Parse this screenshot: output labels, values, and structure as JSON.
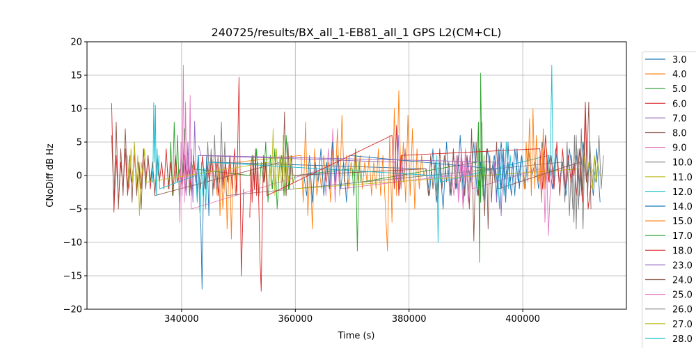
{
  "chart_data": {
    "type": "line",
    "title": "240725/results/BX_all_1-EB81_all_1 GPS L2(CM+CL)",
    "xlabel": "Time (s)",
    "ylabel": "CNoDiff dB Hz",
    "xlim": [
      323365,
      418226
    ],
    "ylim": [
      -20,
      20
    ],
    "xticks": [
      340000,
      360000,
      380000,
      400000
    ],
    "yticks": [
      -20,
      -15,
      -10,
      -5,
      0,
      5,
      10,
      15,
      20
    ],
    "grid": true,
    "legend_position": "outside-right",
    "series": [
      {
        "name": "3.0",
        "color": "#1f77b4",
        "segments": [
          {
            "t0": 342600,
            "dt": 200,
            "values": [
              0,
              -3,
              2,
              -5,
              -8,
              -17,
              -4,
              1,
              -2,
              3,
              0,
              -6,
              2
            ]
          },
          {
            "t0": 383000,
            "dt": 600,
            "values": [
              1,
              -3,
              4,
              -4,
              2,
              -5,
              5,
              -3,
              3,
              -2,
              6,
              -4,
              3,
              -1,
              5,
              -3,
              2,
              -4,
              4,
              0,
              3,
              -2,
              5,
              -1,
              2,
              -3,
              4,
              -1,
              3,
              -2,
              4,
              0,
              2,
              -2,
              5,
              -1,
              3,
              -2,
              4,
              -1,
              2,
              -3,
              4,
              0,
              3,
              -2,
              5,
              -1,
              2,
              -3,
              4,
              -4
            ]
          }
        ]
      },
      {
        "name": "4.0",
        "color": "#ff7f0e",
        "segments": [
          {
            "t0": 346000,
            "dt": 250,
            "values": [
              0,
              -3,
              2,
              -6,
              1,
              -5,
              -2,
              3,
              -8,
              -1,
              2,
              -9.5,
              0,
              1,
              -3,
              2
            ]
          },
          {
            "t0": 361000,
            "dt": 400,
            "values": [
              3,
              -4,
              8,
              -6,
              2,
              -8,
              4,
              -3,
              1,
              -2,
              3,
              -1,
              2,
              -4,
              5,
              -2,
              7,
              -3,
              9,
              -1,
              3,
              -2,
              2,
              0,
              4,
              -1,
              3,
              -2,
              2,
              -1,
              3,
              -3,
              2,
              -2,
              4,
              -3,
              3,
              -4,
              -11.3,
              6,
              -7,
              10,
              -3,
              12.7,
              -2,
              5,
              -4,
              9,
              -3,
              7,
              -5,
              4,
              -2,
              3,
              0,
              1
            ]
          }
        ]
      },
      {
        "name": "5.0",
        "color": "#2ca02c",
        "segments": [
          {
            "t0": 337500,
            "dt": 300,
            "values": [
              1,
              -2,
              5,
              -3,
              8,
              -1,
              6,
              -4,
              3,
              0,
              7,
              -2,
              4,
              -3,
              2,
              1
            ]
          },
          {
            "t0": 352000,
            "dt": 400,
            "values": [
              0,
              3,
              -2,
              4,
              -3,
              2,
              -1,
              5,
              -4,
              3,
              -2,
              4,
              -5,
              1,
              3,
              -3,
              6,
              -2,
              2,
              -1,
              0
            ]
          },
          {
            "t0": 370000,
            "dt": 300,
            "values": [
              1,
              -3,
              4,
              -11.3,
              2,
              -1
            ]
          },
          {
            "t0": 392000,
            "dt": 200,
            "values": [
              2,
              8,
              -13,
              15.3,
              1,
              -2,
              3
            ]
          }
        ]
      },
      {
        "name": "6.0",
        "color": "#d62728",
        "segments": [
          {
            "t0": 327700,
            "dt": 400,
            "values": [
              10.8,
              -5.5,
              3,
              -4,
              2,
              -2,
              4,
              -3,
              1,
              -1,
              3,
              -2,
              2,
              -2,
              4,
              -1,
              3,
              -2,
              2,
              -3,
              3,
              -1,
              2,
              -2,
              4,
              -2,
              2,
              -3,
              3,
              -1,
              1,
              -2,
              3,
              -1,
              2,
              -3,
              3,
              -1,
              2,
              -2,
              3,
              -2,
              2,
              -1,
              3,
              -2,
              2,
              -3,
              3,
              -2,
              2,
              -1,
              3,
              -2,
              4,
              -3,
              14.7,
              -15,
              -2
            ]
          }
        ]
      },
      {
        "name": "7.0",
        "color": "#9467bd",
        "segments": [
          {
            "t0": 340500,
            "dt": 300,
            "values": [
              0,
              -3,
              5,
              -2,
              4,
              -4,
              8.1,
              -1,
              3
            ]
          },
          {
            "t0": 377500,
            "dt": 300,
            "values": [
              2,
              -1,
              6,
              -2,
              3,
              -1,
              4,
              0
            ]
          }
        ]
      },
      {
        "name": "8.0",
        "color": "#8c564b",
        "segments": [
          {
            "t0": 327700,
            "dt": 400,
            "values": [
              6,
              -4,
              8,
              -5,
              4,
              -3,
              7,
              -2,
              3,
              -4,
              5,
              -3,
              2,
              -5,
              4,
              -2,
              3,
              -1,
              2,
              -3
            ]
          },
          {
            "t0": 357500,
            "dt": 300,
            "values": [
              2,
              -1,
              9.5,
              -3,
              5,
              -2,
              3,
              0
            ]
          },
          {
            "t0": 383000,
            "dt": 400,
            "values": [
              1,
              -3,
              3,
              -2,
              2,
              -4,
              4,
              -2,
              3,
              -1,
              2,
              -3,
              4,
              -2,
              3,
              -1,
              2,
              -3,
              3,
              -5,
              7,
              -9.8,
              5,
              -3,
              1
            ]
          }
        ]
      },
      {
        "name": "9.0",
        "color": "#e377c2",
        "segments": [
          {
            "t0": 339500,
            "dt": 200,
            "values": [
              0,
              -7,
              5,
              -3,
              16.5,
              -4,
              11,
              -2,
              3,
              -1,
              12,
              -5
            ]
          },
          {
            "t0": 365000,
            "dt": 400,
            "values": [
              1,
              -3,
              4,
              -2,
              7,
              -4,
              3,
              -2
            ]
          },
          {
            "t0": 387500,
            "dt": 400,
            "values": [
              0,
              -3,
              3,
              -4,
              2,
              -5,
              4,
              -1,
              3,
              -2
            ]
          },
          {
            "t0": 403000,
            "dt": 300,
            "values": [
              1,
              -4,
              3,
              -7,
              2,
              -9,
              -3,
              1,
              -2,
              0
            ]
          }
        ]
      },
      {
        "name": "10.0",
        "color": "#7f7f7f",
        "segments": [
          {
            "t0": 344000,
            "dt": 300,
            "values": [
              1,
              -2,
              5,
              -1,
              4,
              -3,
              6,
              -2,
              3,
              -1,
              8,
              -2,
              5,
              -3
            ]
          },
          {
            "t0": 407000,
            "dt": 400,
            "values": [
              2,
              -4,
              5,
              -6,
              3,
              -7,
              6,
              -5,
              4,
              -8,
              9,
              -3,
              5,
              -2,
              3,
              -1,
              6,
              -2,
              3
            ]
          }
        ]
      },
      {
        "name": "11.0",
        "color": "#bcbd22",
        "segments": [
          {
            "t0": 330500,
            "dt": 300,
            "values": [
              3,
              -2,
              4,
              -1,
              5,
              -2,
              3,
              -6,
              2,
              0,
              4,
              -1
            ]
          },
          {
            "t0": 355500,
            "dt": 300,
            "values": [
              2,
              -2,
              7,
              -3,
              4,
              -1,
              3,
              -2,
              6,
              -3,
              2,
              -1,
              3,
              0,
              -2
            ]
          },
          {
            "t0": 410000,
            "dt": 400,
            "values": [
              1,
              -2,
              3,
              -1,
              2,
              0,
              1,
              -1,
              2,
              0
            ]
          }
        ]
      },
      {
        "name": "12.0",
        "color": "#17becf",
        "segments": [
          {
            "t0": 334800,
            "dt": 150,
            "values": [
              1,
              -1,
              10.9,
              2,
              10.5,
              -3,
              4,
              0,
              3,
              -2
            ]
          },
          {
            "t0": 342500,
            "dt": 250,
            "values": [
              0,
              -4,
              3,
              -6,
              2,
              -3,
              1,
              -5,
              2
            ]
          },
          {
            "t0": 384500,
            "dt": 200,
            "values": [
              0,
              -3,
              3,
              -10,
              2,
              -1
            ]
          },
          {
            "t0": 404500,
            "dt": 200,
            "values": [
              3,
              -1,
              5,
              16.5,
              2,
              -1,
              3
            ]
          }
        ]
      },
      {
        "name": "14.0",
        "color": "#1f77b4",
        "segments": [
          {
            "t0": 361500,
            "dt": 500,
            "values": [
              0,
              -3,
              3,
              -4,
              2,
              -1,
              4,
              -3,
              2,
              -2,
              5,
              -1,
              3,
              -2,
              2,
              -4,
              3
            ]
          },
          {
            "t0": 395000,
            "dt": 400,
            "values": [
              1,
              -3,
              4,
              -2,
              3,
              -4,
              5,
              -1,
              2,
              -3,
              4,
              -2,
              3
            ]
          }
        ]
      },
      {
        "name": "15.0",
        "color": "#ff7f0e",
        "segments": [
          {
            "t0": 400000,
            "dt": 300,
            "values": [
              0,
              -2,
              5,
              -1,
              8.5,
              -3,
              10,
              -2,
              6,
              -1,
              3,
              -4,
              7,
              -2,
              4,
              0
            ]
          }
        ]
      },
      {
        "name": "17.0",
        "color": "#2ca02c",
        "segments": [
          {
            "t0": 392000,
            "dt": 200,
            "values": [
              1,
              -2,
              4,
              -4,
              8,
              -3,
              2,
              -1
            ]
          }
        ]
      },
      {
        "name": "18.0",
        "color": "#d62728",
        "segments": [
          {
            "t0": 352000,
            "dt": 200,
            "values": [
              -6.3,
              2,
              -4,
              3,
              -2,
              4,
              -3,
              2,
              -5,
              -12.6,
              -17.3,
              -6,
              3,
              -1,
              2,
              -3
            ]
          },
          {
            "t0": 377000,
            "dt": 400,
            "values": [
              6,
              -2,
              7.5,
              -3,
              3
            ]
          },
          {
            "t0": 403000,
            "dt": 500,
            "values": [
              4,
              -2,
              6,
              -1,
              3,
              -2,
              5,
              -3,
              4,
              -2,
              3,
              -1,
              2,
              -3,
              4,
              -4,
              11,
              -5,
              -1.5
            ]
          }
        ]
      },
      {
        "name": "23.0",
        "color": "#9467bd",
        "segments": [
          {
            "t0": 343000,
            "dt": 400,
            "values": [
              4.5,
              3
            ]
          },
          {
            "t0": 395000,
            "dt": 400,
            "values": [
              2,
              -4,
              3,
              -6,
              4,
              -3,
              2
            ]
          }
        ]
      },
      {
        "name": "24.0",
        "color": "#8c564b",
        "segments": [
          {
            "t0": 393000,
            "dt": 300,
            "values": [
              0,
              -6,
              4,
              -8,
              3,
              -4,
              2,
              -1,
              5,
              -2
            ]
          },
          {
            "t0": 410000,
            "dt": 400,
            "values": [
              2,
              -3,
              5,
              -1,
              11,
              -5
            ]
          }
        ]
      },
      {
        "name": "25.0",
        "color": "#e377c2",
        "segments": [
          {
            "t0": 388000,
            "dt": 400,
            "values": [
              -1,
              2,
              -3,
              4,
              -2,
              3,
              -4,
              2,
              -1
            ]
          }
        ]
      },
      {
        "name": "26.0",
        "color": "#7f7f7f",
        "segments": [
          {
            "t0": 408500,
            "dt": 300,
            "values": [
              1,
              -5,
              6,
              -8,
              4,
              -3,
              7,
              -2
            ]
          }
        ]
      },
      {
        "name": "27.0",
        "color": "#bcbd22",
        "segments": [
          {
            "t0": 412000,
            "dt": 300,
            "values": [
              1,
              -2,
              3,
              -1,
              2
            ]
          }
        ]
      },
      {
        "name": "28.0",
        "color": "#17becf",
        "segments": [
          {
            "t0": 395500,
            "dt": 400,
            "values": [
              2,
              -5,
              4,
              -3,
              5,
              -2,
              3
            ]
          }
        ]
      }
    ]
  }
}
